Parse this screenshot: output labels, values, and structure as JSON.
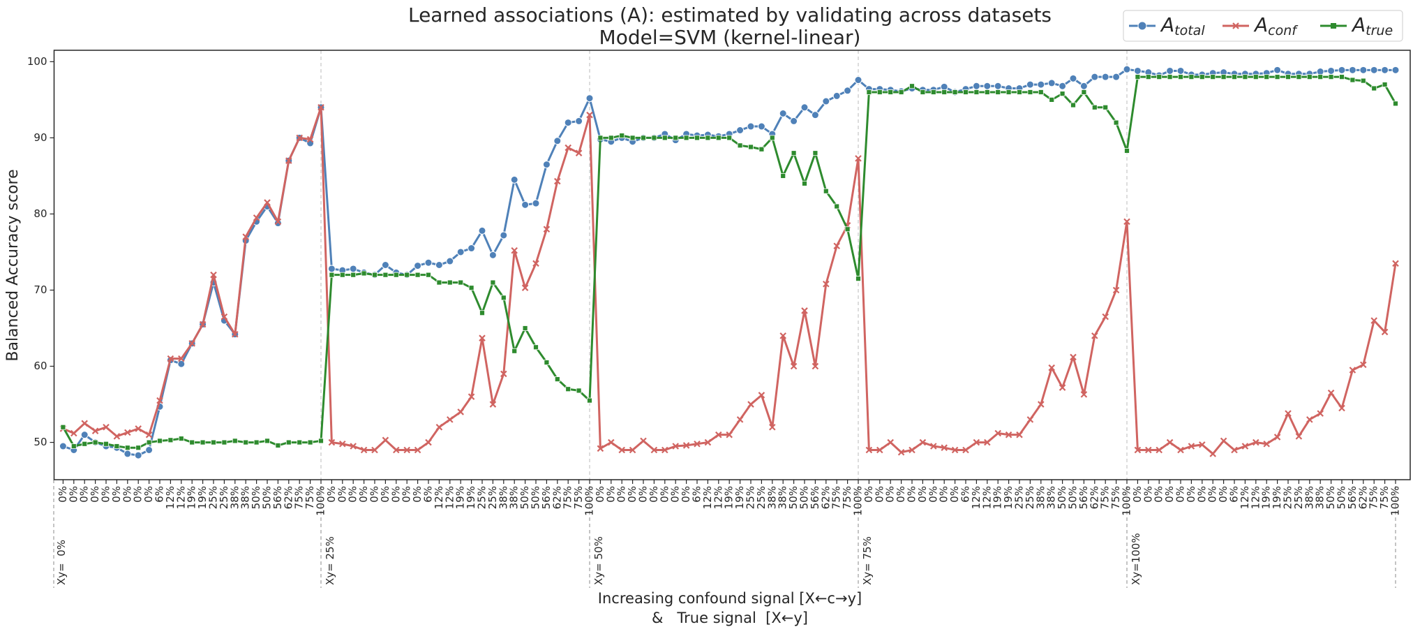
{
  "chart_data": {
    "type": "line",
    "title": [
      "Learned associations (A): estimated by validating across datasets",
      "Model=SVM (kernel-linear)"
    ],
    "ylabel": "Balanced Accuracy score",
    "xlabel": [
      "Increasing confound signal [X←c→y]",
      "&   True signal  [X←y]"
    ],
    "categories": [
      "0%",
      "0%",
      "0%",
      "0%",
      "0%",
      "0%",
      "0%",
      "0%",
      "0%",
      "6%",
      "12%",
      "12%",
      "19%",
      "19%",
      "25%",
      "25%",
      "38%",
      "38%",
      "50%",
      "50%",
      "56%",
      "62%",
      "75%",
      "75%",
      "100%",
      "0%",
      "0%",
      "0%",
      "0%",
      "0%",
      "0%",
      "0%",
      "0%",
      "0%",
      "6%",
      "12%",
      "12%",
      "19%",
      "19%",
      "25%",
      "25%",
      "38%",
      "38%",
      "50%",
      "50%",
      "56%",
      "62%",
      "75%",
      "75%",
      "100%",
      "0%",
      "0%",
      "0%",
      "0%",
      "0%",
      "0%",
      "0%",
      "0%",
      "0%",
      "6%",
      "12%",
      "12%",
      "19%",
      "19%",
      "25%",
      "25%",
      "38%",
      "38%",
      "50%",
      "50%",
      "56%",
      "62%",
      "75%",
      "75%",
      "100%",
      "0%",
      "0%",
      "0%",
      "0%",
      "0%",
      "0%",
      "0%",
      "0%",
      "0%",
      "6%",
      "12%",
      "12%",
      "19%",
      "19%",
      "25%",
      "25%",
      "38%",
      "38%",
      "50%",
      "50%",
      "56%",
      "62%",
      "75%",
      "75%",
      "100%",
      "0%",
      "0%",
      "0%",
      "0%",
      "0%",
      "0%",
      "0%",
      "0%",
      "0%",
      "6%",
      "12%",
      "12%",
      "19%",
      "19%",
      "25%",
      "25%",
      "38%",
      "38%",
      "50%",
      "50%",
      "56%",
      "62%",
      "75%",
      "75%",
      "100%"
    ],
    "groups": [
      "Xy=  0%",
      "Xy= 25%",
      "Xy= 50%",
      "Xy= 75%",
      "Xy=100%"
    ],
    "ylim": [
      45.1,
      101.5
    ],
    "yticks": [
      50,
      60,
      70,
      80,
      90,
      100
    ],
    "legend": "upper right",
    "series": [
      {
        "name": "A",
        "subscript": "total",
        "color": "#4f81b8",
        "marker": "circle",
        "values": [
          49.5,
          49,
          51,
          50,
          49.5,
          49.3,
          48.5,
          48.3,
          49,
          54.7,
          60.8,
          60.3,
          63,
          65.5,
          71,
          66,
          64.2,
          76.5,
          79,
          81,
          78.8,
          87,
          90,
          89.3,
          94,
          72.8,
          72.6,
          72.8,
          72.3,
          72,
          73.3,
          72.3,
          72,
          73.2,
          73.6,
          73.3,
          73.8,
          75,
          75.5,
          77.8,
          74.6,
          77.2,
          84.5,
          81.2,
          81.4,
          86.5,
          89.6,
          92,
          92.2,
          95.2,
          89.8,
          89.5,
          90,
          89.5,
          90,
          90,
          90.5,
          89.7,
          90.5,
          90.3,
          90.4,
          90.2,
          90.5,
          91,
          91.5,
          91.5,
          90.5,
          93.2,
          92.2,
          94,
          93,
          94.8,
          95.5,
          96.2,
          97.6,
          96.4,
          96.4,
          96.3,
          96.1,
          96.5,
          96.3,
          96.3,
          96.7,
          96,
          96.4,
          96.8,
          96.8,
          96.8,
          96.5,
          96.5,
          97,
          97,
          97.2,
          96.8,
          97.8,
          96.8,
          98,
          98,
          98,
          99,
          98.8,
          98.6,
          98.2,
          98.8,
          98.8,
          98.3,
          98.3,
          98.5,
          98.6,
          98.4,
          98.4,
          98.4,
          98.5,
          98.9,
          98.4,
          98.4,
          98.4,
          98.7,
          98.8,
          98.9,
          98.9,
          98.9,
          98.9,
          98.9,
          98.9
        ]
      },
      {
        "name": "A",
        "subscript": "conf",
        "color": "#d06461",
        "marker": "x",
        "values": [
          51.8,
          51.2,
          52.5,
          51.5,
          52,
          50.8,
          51.3,
          51.8,
          51,
          55.5,
          61,
          61,
          63,
          65.5,
          72,
          66.5,
          64.2,
          77,
          79.5,
          81.5,
          79,
          87,
          90,
          89.8,
          94,
          50,
          49.8,
          49.5,
          49,
          49,
          50.3,
          49,
          49,
          49,
          50,
          52,
          53,
          54,
          56,
          63.7,
          55,
          59,
          75.2,
          70.3,
          73.5,
          78,
          84.3,
          88.7,
          88,
          93,
          49.2,
          50,
          49,
          49,
          50.2,
          49,
          49,
          49.5,
          49.6,
          49.8,
          50,
          51,
          51,
          53,
          55,
          56.2,
          52,
          64,
          60,
          67.3,
          60,
          70.8,
          75.8,
          78.5,
          87.3,
          49,
          49,
          50,
          48.7,
          49,
          50,
          49.5,
          49.3,
          49,
          49,
          50,
          50,
          51.2,
          51,
          51,
          53,
          55,
          59.8,
          57.2,
          61.2,
          56.3,
          64,
          66.5,
          70,
          79,
          49,
          49,
          49,
          50,
          49,
          49.5,
          49.7,
          48.5,
          50.2,
          49,
          49.5,
          50,
          49.8,
          50.7,
          53.8,
          50.8,
          53,
          53.8,
          56.5,
          54.5,
          59.5,
          60.2,
          66,
          64.5,
          73.5
        ]
      },
      {
        "name": "A",
        "subscript": "true",
        "color": "#2e8b2e",
        "marker": "square",
        "values": [
          52,
          49.5,
          49.8,
          50,
          49.8,
          49.5,
          49.3,
          49.3,
          50,
          50.2,
          50.3,
          50.5,
          50,
          50,
          50,
          50,
          50.2,
          50,
          50,
          50.2,
          49.6,
          50,
          50,
          50,
          50.2,
          72,
          72,
          72,
          72.2,
          72,
          72,
          72,
          72,
          72,
          72,
          71,
          71,
          71,
          70.3,
          67,
          71,
          69,
          62,
          65,
          62.5,
          60.5,
          58.3,
          57,
          56.8,
          55.5,
          90,
          90,
          90.3,
          90,
          90,
          90,
          90,
          90,
          90,
          90,
          90,
          90,
          90,
          89,
          88.8,
          88.5,
          90,
          85,
          88,
          84,
          88,
          83,
          81,
          78,
          71.5,
          96,
          96,
          96,
          96,
          96.8,
          96,
          96,
          96,
          96,
          96,
          96,
          96,
          96,
          96,
          96,
          96,
          96,
          95,
          95.8,
          94.3,
          96,
          94,
          94,
          92,
          88.3,
          98,
          98,
          98,
          98,
          98,
          98,
          98,
          98,
          98,
          98,
          98,
          98,
          98,
          98,
          98,
          98,
          98,
          98,
          98,
          98,
          97.6,
          97.5,
          96.5,
          97,
          94.5
        ]
      }
    ]
  }
}
